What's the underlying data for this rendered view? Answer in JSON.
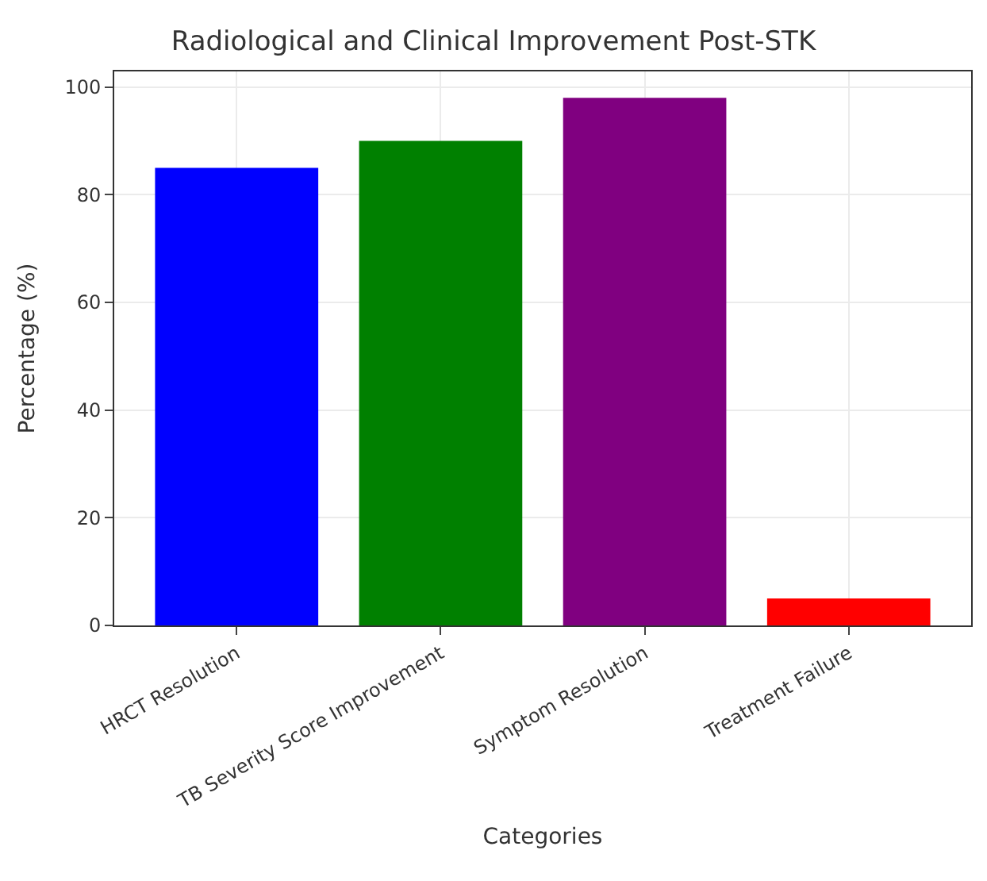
{
  "chart_data": {
    "type": "bar",
    "title": "Radiological and Clinical Improvement Post-STK",
    "xlabel": "Categories",
    "ylabel": "Percentage (%)",
    "categories": [
      "HRCT Resolution",
      "TB Severity Score Improvement",
      "Symptom Resolution",
      "Treatment Failure"
    ],
    "values": [
      85,
      90,
      98,
      5
    ],
    "colors": [
      "#0000ff",
      "#008000",
      "#800080",
      "#ff0000"
    ],
    "ylim": [
      0,
      102.9
    ],
    "yticks": [
      0,
      20,
      40,
      60,
      80,
      100
    ],
    "grid": true
  }
}
